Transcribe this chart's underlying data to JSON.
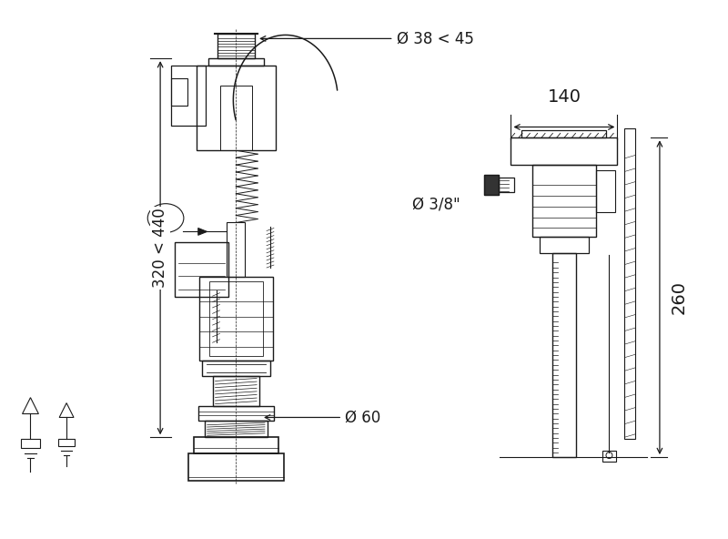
{
  "bg_color": "#ffffff",
  "lc": "#1a1a1a",
  "lw": 0.9,
  "figsize": [
    8.0,
    5.92
  ],
  "dpi": 100,
  "labels": {
    "diam_top": "Ø 38 < 45",
    "diam_bot": "Ø 60",
    "height": "320 < 440",
    "width": "140",
    "height_right": "260",
    "inlet": "Ø 3/8\""
  },
  "fontsize": 11
}
